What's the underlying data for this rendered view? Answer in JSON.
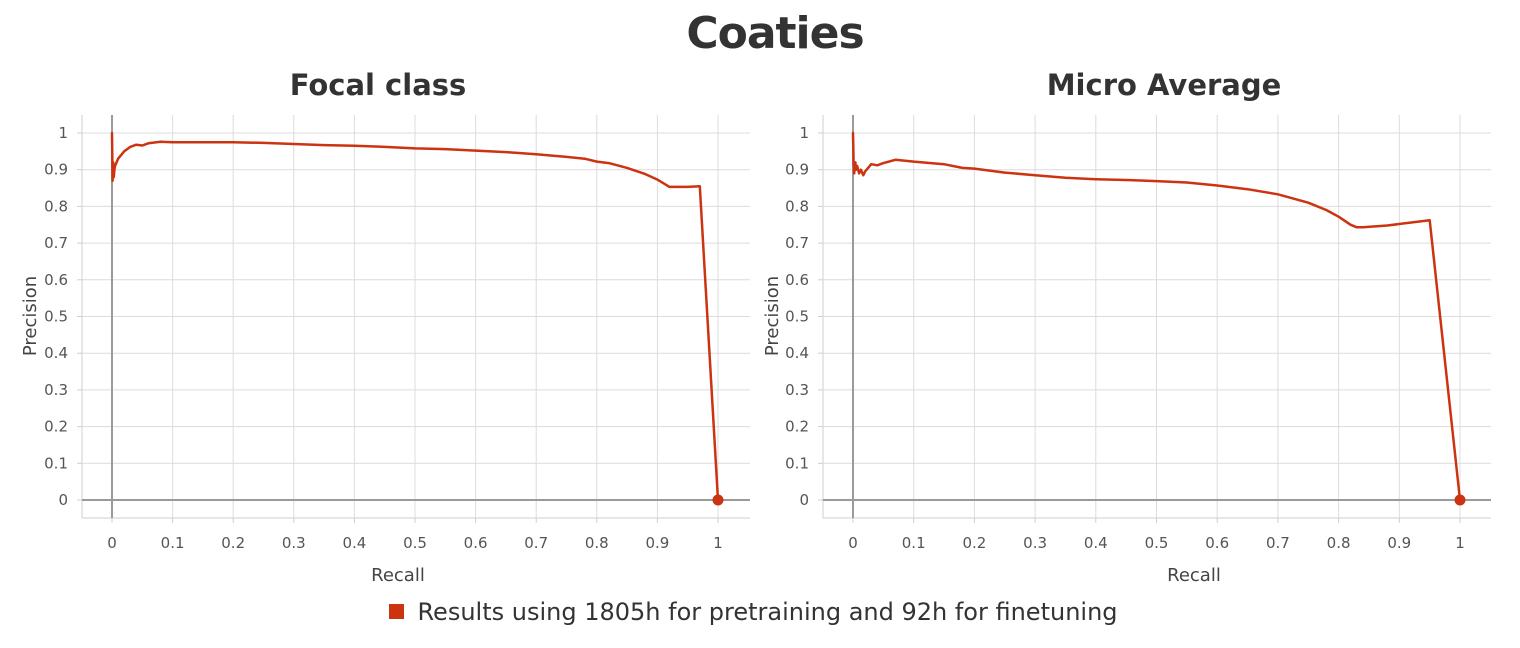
{
  "title": "Coaties",
  "legend": {
    "label": "Results using 1805h for pretraining and 92h for finetuning",
    "color": "#cc3311"
  },
  "chart_data": [
    {
      "type": "line",
      "title": "Focal class",
      "xlabel": "Recall",
      "ylabel": "Precision",
      "xlim": [
        0,
        1
      ],
      "ylim": [
        0,
        1
      ],
      "xticks": [
        "0",
        "0.1",
        "0.2",
        "0.3",
        "0.4",
        "0.5",
        "0.6",
        "0.7",
        "0.8",
        "0.9",
        "1"
      ],
      "yticks": [
        "0",
        "0.1",
        "0.2",
        "0.3",
        "0.4",
        "0.5",
        "0.6",
        "0.7",
        "0.8",
        "0.9",
        "1"
      ],
      "grid": true,
      "series": [
        {
          "name": "Results using 1805h for pretraining and 92h for finetuning",
          "color": "#cc3311",
          "x": [
            0,
            0.001,
            0.002,
            0.003,
            0.004,
            0.005,
            0.01,
            0.02,
            0.03,
            0.04,
            0.05,
            0.06,
            0.08,
            0.1,
            0.15,
            0.2,
            0.25,
            0.3,
            0.35,
            0.4,
            0.45,
            0.5,
            0.55,
            0.6,
            0.65,
            0.7,
            0.75,
            0.78,
            0.8,
            0.82,
            0.85,
            0.88,
            0.9,
            0.92,
            0.95,
            0.97,
            1,
            1
          ],
          "y": [
            1,
            0.87,
            0.92,
            0.88,
            0.9,
            0.91,
            0.93,
            0.95,
            0.962,
            0.968,
            0.966,
            0.972,
            0.976,
            0.975,
            0.975,
            0.975,
            0.973,
            0.97,
            0.967,
            0.965,
            0.962,
            0.958,
            0.956,
            0.952,
            0.948,
            0.942,
            0.935,
            0.93,
            0.922,
            0.918,
            0.905,
            0.888,
            0.873,
            0.853,
            0.853,
            0.855,
            0,
            0
          ]
        }
      ],
      "marker_point": [
        1,
        0
      ]
    },
    {
      "type": "line",
      "title": "Micro Average",
      "xlabel": "Recall",
      "ylabel": "Precision",
      "xlim": [
        0,
        1
      ],
      "ylim": [
        0,
        1
      ],
      "xticks": [
        "0",
        "0.1",
        "0.2",
        "0.3",
        "0.4",
        "0.5",
        "0.6",
        "0.7",
        "0.8",
        "0.9",
        "1"
      ],
      "yticks": [
        "0",
        "0.1",
        "0.2",
        "0.3",
        "0.4",
        "0.5",
        "0.6",
        "0.7",
        "0.8",
        "0.9",
        "1"
      ],
      "grid": true,
      "series": [
        {
          "name": "Results using 1805h for pretraining and 92h for finetuning",
          "color": "#cc3311",
          "x": [
            0,
            0.001,
            0.002,
            0.003,
            0.004,
            0.005,
            0.007,
            0.01,
            0.013,
            0.017,
            0.02,
            0.03,
            0.04,
            0.05,
            0.07,
            0.1,
            0.15,
            0.18,
            0.2,
            0.25,
            0.3,
            0.35,
            0.4,
            0.45,
            0.5,
            0.55,
            0.6,
            0.65,
            0.7,
            0.75,
            0.78,
            0.8,
            0.82,
            0.83,
            0.84,
            0.88,
            0.95,
            1,
            1
          ],
          "y": [
            1,
            0.92,
            0.89,
            0.91,
            0.92,
            0.9,
            0.91,
            0.89,
            0.9,
            0.885,
            0.895,
            0.915,
            0.912,
            0.918,
            0.927,
            0.922,
            0.915,
            0.905,
            0.903,
            0.892,
            0.885,
            0.878,
            0.874,
            0.872,
            0.869,
            0.865,
            0.857,
            0.847,
            0.833,
            0.81,
            0.79,
            0.772,
            0.75,
            0.743,
            0.743,
            0.748,
            0.762,
            0,
            0
          ]
        }
      ],
      "marker_point": [
        1,
        0
      ]
    }
  ]
}
